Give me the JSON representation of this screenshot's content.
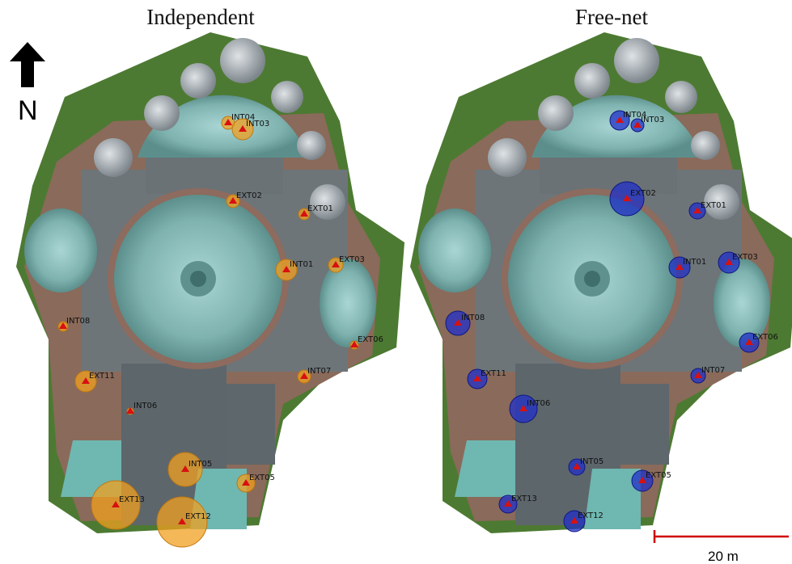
{
  "panels": [
    {
      "id": "independent",
      "title": "Independent"
    },
    {
      "id": "free-net",
      "title": "Free-net"
    }
  ],
  "compass": {
    "letter": "N"
  },
  "scale_bar": {
    "label": "20 m"
  },
  "colors": {
    "independent_marker": "#f0a020",
    "free_net_marker": "#2030c8",
    "triangle": "#d81010",
    "roof_teal": "#7fb8b8",
    "roof_grey": "#6c7478",
    "vegetation": "#4a7a2c",
    "scale_bar": "#d00000"
  },
  "points": [
    {
      "label": "INT04"
    },
    {
      "label": "INT03"
    },
    {
      "label": "EXT02"
    },
    {
      "label": "EXT01"
    },
    {
      "label": "INT01"
    },
    {
      "label": "EXT03"
    },
    {
      "label": "INT08"
    },
    {
      "label": "EXT06"
    },
    {
      "label": "EXT11"
    },
    {
      "label": "INT07"
    },
    {
      "label": "INT06"
    },
    {
      "label": "INT05"
    },
    {
      "label": "EXT05"
    },
    {
      "label": "EXT13"
    },
    {
      "label": "EXT12"
    }
  ]
}
